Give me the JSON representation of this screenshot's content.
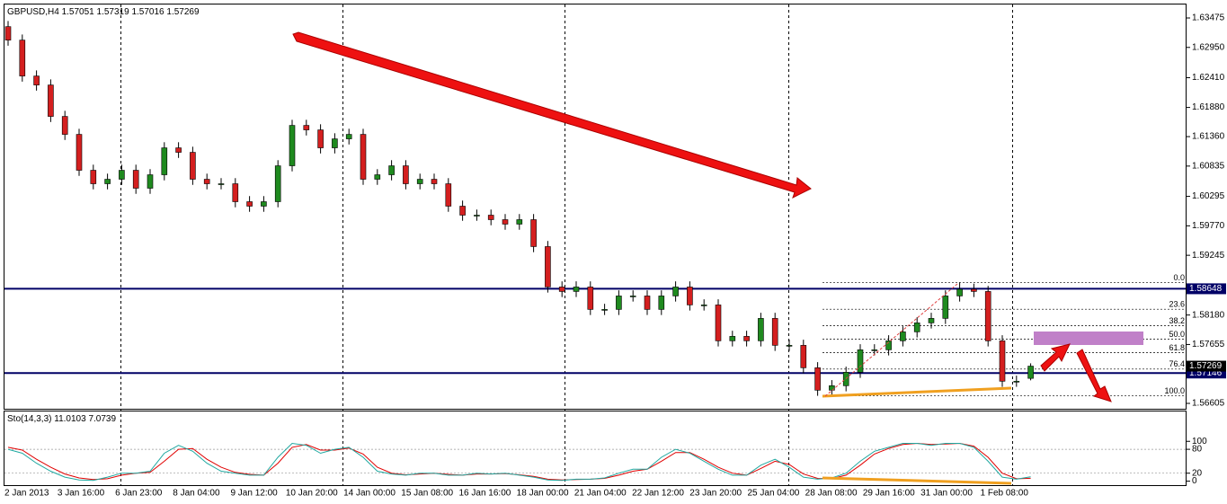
{
  "chart_data": {
    "type": "candlestick",
    "symbol": "GBPUSD,H4",
    "up_color": "#1f8a1f",
    "down_color": "#d41f1f",
    "open": [
      1.6332,
      1.6308,
      1.6244,
      1.6228,
      1.6172,
      1.614,
      1.6076,
      1.6052,
      1.606,
      1.6076,
      1.6044,
      1.6068,
      1.6116,
      1.6108,
      1.606,
      1.6052,
      1.6052,
      1.602,
      1.6012,
      1.602,
      1.6084,
      1.6156,
      1.6148,
      1.6116,
      1.6132,
      1.614,
      1.606,
      1.6068,
      1.6084,
      1.6052,
      1.606,
      1.6052,
      1.6012,
      1.5996,
      1.5996,
      1.5988,
      1.598,
      1.5988,
      1.594,
      1.5868,
      1.586,
      1.5868,
      1.5828,
      1.5828,
      1.5852,
      1.5852,
      1.5828,
      1.5852,
      1.5868,
      1.5836,
      1.5836,
      1.5772,
      1.578,
      1.5772,
      1.5812,
      1.5764,
      1.5764,
      1.5724,
      1.5684,
      1.5692,
      1.5716,
      1.5756,
      1.5756,
      1.5772,
      1.5788,
      1.5804,
      1.5812,
      1.5852,
      1.5864,
      1.586,
      1.5772,
      1.57,
      1.57051
    ],
    "high": [
      1.6342,
      1.6318,
      1.6254,
      1.6238,
      1.6182,
      1.615,
      1.6086,
      1.607,
      1.6086,
      1.6086,
      1.6078,
      1.6126,
      1.6126,
      1.6118,
      1.607,
      1.6062,
      1.6062,
      1.603,
      1.603,
      1.6094,
      1.6166,
      1.6166,
      1.6158,
      1.6142,
      1.615,
      1.615,
      1.6078,
      1.6094,
      1.6094,
      1.607,
      1.607,
      1.6062,
      1.6022,
      1.6006,
      1.6006,
      1.5998,
      1.5998,
      1.5998,
      1.595,
      1.5878,
      1.5878,
      1.5878,
      1.5838,
      1.5862,
      1.5862,
      1.5862,
      1.5862,
      1.5878,
      1.5878,
      1.5846,
      1.5846,
      1.579,
      1.579,
      1.5822,
      1.5822,
      1.5774,
      1.5774,
      1.5734,
      1.5702,
      1.5726,
      1.5766,
      1.5766,
      1.5782,
      1.5798,
      1.5814,
      1.5822,
      1.5862,
      1.5876,
      1.5874,
      1.587,
      1.5782,
      1.571,
      1.57319
    ],
    "low": [
      1.6298,
      1.6234,
      1.6218,
      1.6162,
      1.613,
      1.6066,
      1.6042,
      1.6042,
      1.605,
      1.6034,
      1.6034,
      1.6058,
      1.6098,
      1.605,
      1.6042,
      1.6042,
      1.601,
      1.6002,
      1.6002,
      1.601,
      1.6074,
      1.6138,
      1.6106,
      1.6106,
      1.6122,
      1.605,
      1.605,
      1.6058,
      1.6042,
      1.6042,
      1.6042,
      1.6002,
      1.5986,
      1.5986,
      1.5978,
      1.597,
      1.597,
      1.593,
      1.5858,
      1.585,
      1.585,
      1.5818,
      1.5818,
      1.5818,
      1.5842,
      1.5818,
      1.5818,
      1.5842,
      1.5826,
      1.5826,
      1.5762,
      1.5762,
      1.5762,
      1.5762,
      1.5754,
      1.5754,
      1.5714,
      1.5674,
      1.5674,
      1.5682,
      1.5706,
      1.5746,
      1.5746,
      1.5762,
      1.5778,
      1.5794,
      1.5802,
      1.5842,
      1.585,
      1.5762,
      1.569,
      1.569,
      1.57016
    ],
    "close": [
      1.6308,
      1.6244,
      1.6228,
      1.6172,
      1.614,
      1.6076,
      1.6052,
      1.606,
      1.6076,
      1.6044,
      1.6068,
      1.6116,
      1.6108,
      1.606,
      1.6052,
      1.6052,
      1.602,
      1.6012,
      1.602,
      1.6084,
      1.6156,
      1.6148,
      1.6116,
      1.6132,
      1.614,
      1.606,
      1.6068,
      1.6084,
      1.6052,
      1.606,
      1.6052,
      1.6012,
      1.5996,
      1.5996,
      1.5988,
      1.598,
      1.5988,
      1.594,
      1.5868,
      1.586,
      1.5868,
      1.5828,
      1.5828,
      1.5852,
      1.5852,
      1.5828,
      1.5852,
      1.5868,
      1.5836,
      1.5836,
      1.5772,
      1.578,
      1.5772,
      1.5812,
      1.5764,
      1.5764,
      1.5724,
      1.5684,
      1.5692,
      1.5716,
      1.5756,
      1.5756,
      1.5772,
      1.5788,
      1.5804,
      1.5812,
      1.5852,
      1.5864,
      1.586,
      1.5772,
      1.57,
      1.57,
      1.57269
    ],
    "ylim": [
      1.56509,
      1.63715
    ],
    "yticks": [
      1.63475,
      {
        "value": 1.6295,
        "label": "1.62950"
      },
      {
        "value": 1.6241,
        "label": "1.62410"
      },
      {
        "value": 1.6188,
        "label": "1.61880"
      },
      {
        "value": 1.6136,
        "label": "1.61360"
      },
      1.60835,
      1.60295,
      {
        "value": 1.5977,
        "label": "1.59770"
      },
      1.59245,
      {
        "value": 1.5818,
        "label": "1.58180"
      },
      1.57655,
      1.56605
    ],
    "hlines": [
      1.58648,
      1.57146
    ],
    "hline_color": "#000066",
    "fib": {
      "high": 1.5876,
      "low": 1.5674,
      "color": "#000000",
      "levels": [
        {
          "value": 0,
          "label": "0.0"
        },
        23.6,
        38.2,
        {
          "value": 50,
          "label": "50.0"
        },
        61.8,
        76.4,
        {
          "value": 100,
          "label": "100.0"
        }
      ]
    },
    "time_labels": [
      "2 Jan 2013",
      "3 Jan 16:00",
      "6 Jan 23:00",
      "8 Jan 04:00",
      "9 Jan 12:00",
      "10 Jan 20:00",
      "14 Jan 00:00",
      "15 Jan 08:00",
      "16 Jan 16:00",
      "18 Jan 00:00",
      "21 Jan 04:00",
      "22 Jan 12:00",
      "23 Jan 20:00",
      "25 Jan 04:00",
      "28 Jan 08:00",
      "29 Jan 16:00",
      "31 Jan 00:00",
      "1 Feb 08:00"
    ],
    "stochastic": {
      "label": "Sto(14,3,3)",
      "ylim": [
        -10,
        175
      ],
      "yticks": [
        100,
        80,
        20,
        0
      ],
      "main": {
        "color": "#20a8a0",
        "values": [
          80,
          70,
          45,
          25,
          10,
          3,
          2,
          10,
          20,
          20,
          25,
          70,
          90,
          75,
          45,
          25,
          20,
          15,
          15,
          60,
          95,
          90,
          70,
          80,
          85,
          60,
          25,
          18,
          15,
          20,
          20,
          15,
          15,
          20,
          18,
          20,
          15,
          10,
          3,
          2,
          5,
          5,
          8,
          20,
          30,
          30,
          60,
          80,
          70,
          50,
          30,
          15,
          15,
          40,
          55,
          35,
          10,
          5,
          8,
          20,
          50,
          75,
          85,
          95,
          95,
          90,
          95,
          95,
          85,
          50,
          10,
          5,
          11.0103
        ]
      },
      "signal": {
        "color": "#e00000",
        "values": [
          85,
          78,
          55,
          35,
          18,
          8,
          4,
          6,
          15,
          20,
          22,
          50,
          80,
          82,
          55,
          35,
          22,
          17,
          15,
          45,
          85,
          92,
          78,
          78,
          83,
          68,
          35,
          20,
          16,
          18,
          20,
          17,
          15,
          18,
          18,
          19,
          16,
          12,
          5,
          3,
          4,
          5,
          7,
          15,
          25,
          30,
          50,
          72,
          72,
          55,
          35,
          20,
          15,
          32,
          50,
          42,
          18,
          7,
          6,
          15,
          40,
          68,
          82,
          92,
          95,
          92,
          93,
          95,
          88,
          60,
          20,
          6,
          7.0739
        ]
      }
    }
  }
}
